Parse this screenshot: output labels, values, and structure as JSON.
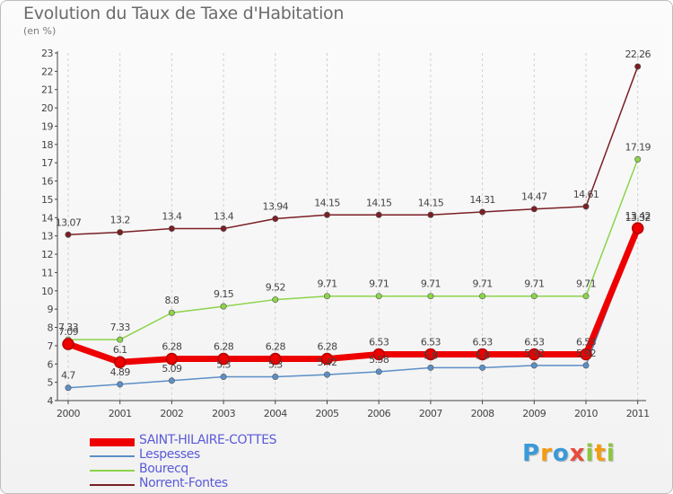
{
  "chart_data": {
    "type": "line",
    "title": "Evolution du Taux de Taxe d'Habitation",
    "subtitle": "(en %)",
    "x": [
      "2000",
      "2001",
      "2002",
      "2003",
      "2004",
      "2005",
      "2006",
      "2007",
      "2008",
      "2009",
      "2010",
      "2011"
    ],
    "ylim": [
      4,
      23
    ],
    "yticks": [
      4,
      5,
      6,
      7,
      8,
      9,
      10,
      11,
      12,
      13,
      14,
      15,
      16,
      17,
      18,
      19,
      20,
      21,
      22,
      23
    ],
    "grid": "vertical dashed",
    "legend": "bottom-left",
    "series": [
      {
        "name": "SAINT-HILAIRE-COTTES",
        "color": "#ee0000",
        "values": [
          7.09,
          6.1,
          6.28,
          6.28,
          6.28,
          6.28,
          6.53,
          6.53,
          6.53,
          6.53,
          6.53,
          13.42
        ],
        "labels": [
          "7.09",
          "6.1",
          "6.28",
          "6.28",
          "6.28",
          "6.28",
          "6.53",
          "6.53",
          "6.53",
          "6.53",
          "6.53",
          "13.42"
        ]
      },
      {
        "name": "Lespesses",
        "color": "#5b8fc7",
        "values": [
          4.7,
          4.89,
          5.09,
          5.3,
          5.3,
          5.42,
          5.58,
          5.8,
          5.8,
          5.92,
          5.92,
          13.32
        ],
        "labels": [
          "4.7",
          "4.89",
          "5.09",
          "5.3",
          "5.3",
          "5.42",
          "5.58",
          "5.8",
          "5.8",
          "5.92",
          "5.92",
          "13.32"
        ]
      },
      {
        "name": "Bourecq",
        "color": "#8cd44a",
        "values": [
          7.33,
          7.33,
          8.8,
          9.15,
          9.52,
          9.71,
          9.71,
          9.71,
          9.71,
          9.71,
          9.71,
          17.19
        ],
        "labels": [
          "7.33",
          "7.33",
          "8.8",
          "9.15",
          "9.52",
          "9.71",
          "9.71",
          "9.71",
          "9.71",
          "9.71",
          "9.71",
          "17.19"
        ]
      },
      {
        "name": "Norrent-Fontes",
        "color": "#7a1f24",
        "values": [
          13.07,
          13.2,
          13.4,
          13.4,
          13.94,
          14.15,
          14.15,
          14.15,
          14.31,
          14.47,
          14.61,
          22.26
        ],
        "labels": [
          "13.07",
          "13.2",
          "13.4",
          "13.4",
          "13.94",
          "14.15",
          "14.15",
          "14.15",
          "14.31",
          "14.47",
          "14.61",
          "22.26"
        ]
      }
    ]
  },
  "logo": {
    "text": "Proxiti",
    "letters": [
      "P",
      "r",
      "o",
      "x",
      "i",
      "t",
      "i"
    ],
    "colors": [
      "#3a9ad9",
      "#f39c12",
      "#3a9ad9",
      "#e74c3c",
      "#8cc63f",
      "#f39c12",
      "#8cc63f"
    ]
  }
}
